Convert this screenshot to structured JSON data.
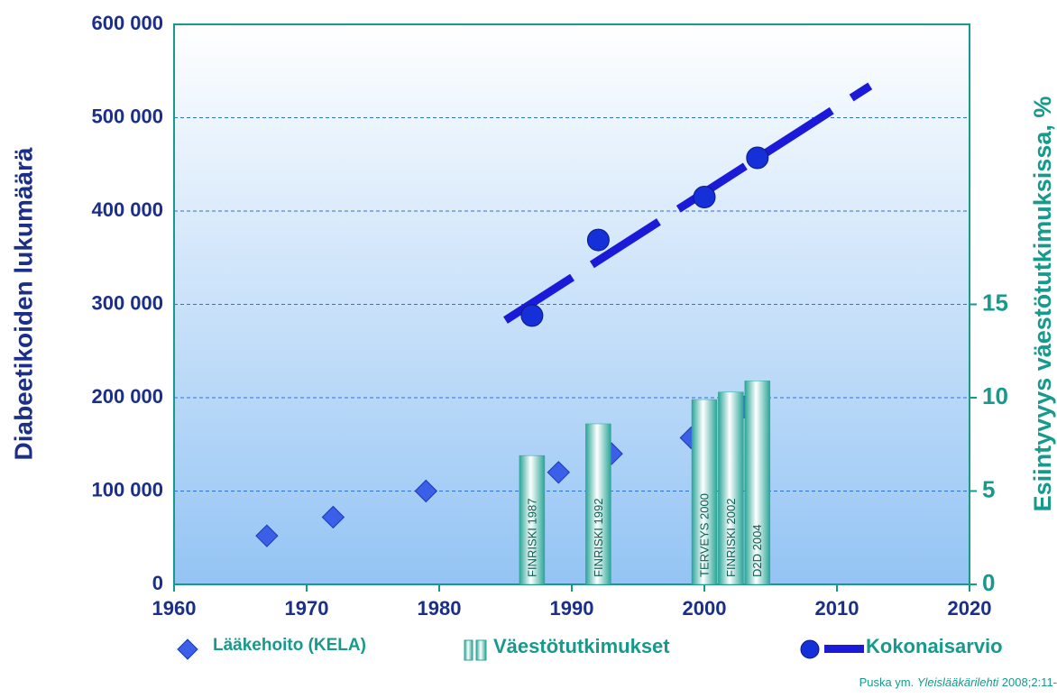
{
  "chart_data": {
    "type": "combo",
    "y_label": "Diabeetikoiden lukumäärä",
    "y2_label": "Esiintyvyys väestötutkimuksissa, %",
    "xlim": [
      1960,
      2020
    ],
    "xticks": [
      1960,
      1970,
      1980,
      1990,
      2000,
      2010,
      2020
    ],
    "ylim": [
      0,
      600000
    ],
    "yticks": [
      0,
      {
        "value": 100000,
        "label": "100 000"
      },
      {
        "value": 200000,
        "label": "200 000"
      },
      {
        "value": 300000,
        "label": "300 000"
      },
      {
        "value": 400000,
        "label": "400 000"
      },
      {
        "value": 500000,
        "label": "500 000"
      },
      {
        "value": 600000,
        "label": "600 000"
      }
    ],
    "y2lim": [
      0,
      30
    ],
    "y2ticks": [
      0,
      5,
      10,
      15
    ],
    "grid": true,
    "series": [
      {
        "name": "Lääkehoito (KELA)",
        "kind": "diamond",
        "color": "#3b5fe8",
        "x": [
          1967,
          1972,
          1979,
          1989,
          1993,
          1999,
          2003
        ],
        "values": [
          52000,
          72000,
          100000,
          120000,
          140000,
          157000,
          190000
        ]
      },
      {
        "name": "Väestötutkimukset",
        "kind": "bar",
        "axis": "y2",
        "color": "#2aa596",
        "x": [
          1987,
          1992,
          2000,
          2002,
          2004
        ],
        "values": [
          6.9,
          8.6,
          9.9,
          10.3,
          10.9
        ],
        "labels": [
          "FINRISKI 1987",
          "FINRISKI 1992",
          "TERVEYS  2000",
          "FINRISKI 2002",
          "D2D 2004"
        ]
      },
      {
        "name": "Kokonaisarvio",
        "kind": "circle",
        "color": "#1530d8",
        "x": [
          1987,
          1992,
          2000,
          2004
        ],
        "values": [
          288000,
          369000,
          415000,
          457000
        ],
        "line_x": [
          1985,
          2012.5
        ],
        "line_values": [
          283000,
          534000
        ]
      }
    ],
    "source": [
      "Puska ym. ",
      "Yleislääkärilehti",
      " 2008;2:11-"
    ]
  }
}
